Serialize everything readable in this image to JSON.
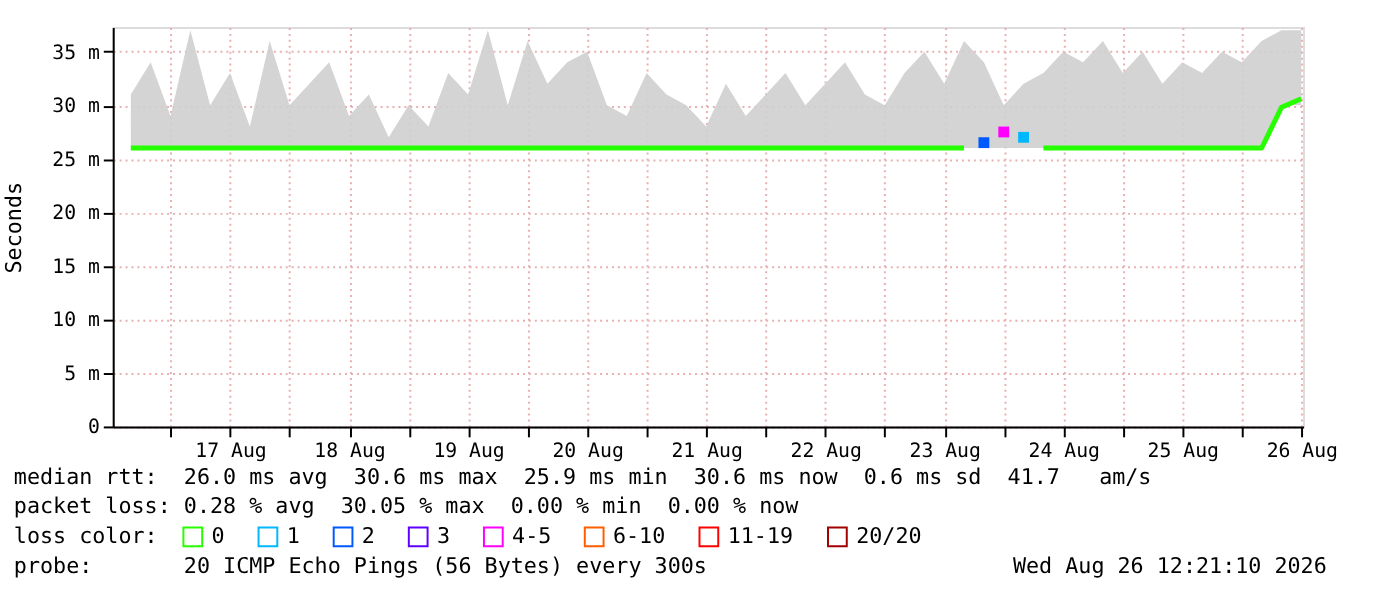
{
  "chart_data": {
    "type": "line",
    "ylabel": "Seconds",
    "legend_title": "loss color:",
    "legend": "bottom",
    "grid": true,
    "line_style": "solid",
    "marker": "none",
    "x": [
      "2026-08-16T16:00",
      "2026-08-16T20:00",
      "2026-08-17T00:00",
      "2026-08-17T04:00",
      "2026-08-17T08:00",
      "2026-08-17T12:00",
      "2026-08-17T16:00",
      "2026-08-17T20:00",
      "2026-08-18T00:00",
      "2026-08-18T04:00",
      "2026-08-18T08:00",
      "2026-08-18T12:00",
      "2026-08-18T16:00",
      "2026-08-18T20:00",
      "2026-08-19T00:00",
      "2026-08-19T04:00",
      "2026-08-19T08:00",
      "2026-08-19T12:00",
      "2026-08-19T16:00",
      "2026-08-19T20:00",
      "2026-08-20T00:00",
      "2026-08-20T04:00",
      "2026-08-20T08:00",
      "2026-08-20T12:00",
      "2026-08-20T16:00",
      "2026-08-20T20:00",
      "2026-08-21T00:00",
      "2026-08-21T04:00",
      "2026-08-21T08:00",
      "2026-08-21T12:00",
      "2026-08-21T16:00",
      "2026-08-21T20:00",
      "2026-08-22T00:00",
      "2026-08-22T04:00",
      "2026-08-22T08:00",
      "2026-08-22T12:00",
      "2026-08-22T16:00",
      "2026-08-22T20:00",
      "2026-08-23T00:00",
      "2026-08-23T04:00",
      "2026-08-23T08:00",
      "2026-08-23T12:00",
      "2026-08-23T16:00",
      "2026-08-23T20:00",
      "2026-08-24T00:00",
      "2026-08-24T04:00",
      "2026-08-24T08:00",
      "2026-08-24T12:00",
      "2026-08-24T16:00",
      "2026-08-24T20:00",
      "2026-08-25T00:00",
      "2026-08-25T04:00",
      "2026-08-25T08:00",
      "2026-08-25T12:00",
      "2026-08-25T16:00",
      "2026-08-25T20:00",
      "2026-08-26T00:00",
      "2026-08-26T04:00",
      "2026-08-26T08:00",
      "2026-08-26T12:00"
    ],
    "xlim": [
      "2026-08-16T12:21",
      "2026-08-26T12:21"
    ],
    "xticks": [
      {
        "value": "2026-08-17T00:00",
        "label": null
      },
      {
        "value": "2026-08-17T12:00",
        "label": "17 Aug"
      },
      {
        "value": "2026-08-18T00:00",
        "label": null
      },
      {
        "value": "2026-08-18T12:00",
        "label": "18 Aug"
      },
      {
        "value": "2026-08-19T00:00",
        "label": null
      },
      {
        "value": "2026-08-19T12:00",
        "label": "19 Aug"
      },
      {
        "value": "2026-08-20T00:00",
        "label": null
      },
      {
        "value": "2026-08-20T12:00",
        "label": "20 Aug"
      },
      {
        "value": "2026-08-21T00:00",
        "label": null
      },
      {
        "value": "2026-08-21T12:00",
        "label": "21 Aug"
      },
      {
        "value": "2026-08-22T00:00",
        "label": null
      },
      {
        "value": "2026-08-22T12:00",
        "label": "22 Aug"
      },
      {
        "value": "2026-08-23T00:00",
        "label": null
      },
      {
        "value": "2026-08-23T12:00",
        "label": "23 Aug"
      },
      {
        "value": "2026-08-24T00:00",
        "label": null
      },
      {
        "value": "2026-08-24T12:00",
        "label": "24 Aug"
      },
      {
        "value": "2026-08-25T00:00",
        "label": null
      },
      {
        "value": "2026-08-25T12:00",
        "label": "25 Aug"
      },
      {
        "value": "2026-08-26T00:00",
        "label": null
      },
      {
        "value": "2026-08-26T12:00",
        "label": "26 Aug"
      }
    ],
    "ylim": [
      0,
      37.3
    ],
    "yticks": [
      0,
      {
        "value": 5,
        "label": "5 m"
      },
      {
        "value": 10,
        "label": "10 m"
      },
      {
        "value": 15,
        "label": "15 m"
      },
      {
        "value": 20,
        "label": "20 m"
      },
      {
        "value": 25,
        "label": "25 m"
      },
      {
        "value": 30,
        "label": "30 m"
      },
      {
        "value": 35,
        "label": "35 m"
      }
    ],
    "series": [
      {
        "name": "0",
        "color": "#26ff00",
        "values": [
          26,
          26,
          26,
          26,
          26,
          26,
          26,
          26,
          26,
          26,
          26,
          26,
          26,
          26,
          26,
          26,
          26,
          26,
          26,
          26,
          26,
          26,
          26,
          26,
          26,
          26,
          26,
          26,
          26,
          26,
          26,
          26,
          26,
          26,
          26,
          26,
          26,
          26,
          26,
          26,
          26,
          26,
          26,
          null,
          null,
          null,
          26,
          26,
          26,
          26,
          26,
          26,
          26,
          26,
          26,
          26,
          26,
          26,
          29.8,
          30.6
        ],
        "lower": [
          26,
          26,
          26,
          26,
          26,
          26,
          26,
          26,
          26,
          26,
          26,
          26,
          26,
          26,
          26,
          26,
          26,
          26,
          26,
          26,
          26,
          26,
          26,
          26,
          26,
          26,
          26,
          26,
          26,
          26,
          26,
          26,
          26,
          26,
          26,
          26,
          26,
          26,
          26,
          26,
          26,
          26,
          26,
          26,
          26,
          26,
          26,
          26,
          26,
          26,
          26,
          26,
          26,
          26,
          26,
          26,
          26,
          26,
          30,
          30
        ],
        "upper": [
          31,
          34,
          29,
          37,
          30,
          33,
          28,
          36,
          30,
          32,
          34,
          29,
          31,
          27,
          30,
          28,
          33,
          31,
          37,
          30,
          36,
          32,
          34,
          35,
          30,
          29,
          33,
          31,
          30,
          28,
          32,
          29,
          31,
          33,
          30,
          32,
          34,
          31,
          30,
          33,
          35,
          32,
          36,
          34,
          30,
          32,
          33,
          35,
          34,
          36,
          33,
          35,
          32,
          34,
          33,
          35,
          34,
          36,
          37,
          37
        ]
      },
      {
        "name": "1",
        "color": "#00b8ff",
        "marker": "square",
        "values": [
          null,
          null,
          null,
          null,
          null,
          null,
          null,
          null,
          null,
          null,
          null,
          null,
          null,
          null,
          null,
          null,
          null,
          null,
          null,
          null,
          null,
          null,
          null,
          null,
          null,
          null,
          null,
          null,
          null,
          null,
          null,
          null,
          null,
          null,
          null,
          null,
          null,
          null,
          null,
          null,
          null,
          null,
          null,
          null,
          null,
          27,
          null,
          null,
          null,
          null,
          null,
          null,
          null,
          null,
          null,
          null,
          null,
          null,
          null,
          null
        ]
      },
      {
        "name": "2",
        "color": "#0059ff",
        "marker": "square",
        "values": [
          null,
          null,
          null,
          null,
          null,
          null,
          null,
          null,
          null,
          null,
          null,
          null,
          null,
          null,
          null,
          null,
          null,
          null,
          null,
          null,
          null,
          null,
          null,
          null,
          null,
          null,
          null,
          null,
          null,
          null,
          null,
          null,
          null,
          null,
          null,
          null,
          null,
          null,
          null,
          null,
          null,
          null,
          null,
          26.5,
          null,
          null,
          null,
          null,
          null,
          null,
          null,
          null,
          null,
          null,
          null,
          null,
          null,
          null,
          null,
          null
        ]
      },
      {
        "name": "3",
        "color": "#5e00ff",
        "values": [
          null,
          null,
          null,
          null,
          null,
          null,
          null,
          null,
          null,
          null,
          null,
          null,
          null,
          null,
          null,
          null,
          null,
          null,
          null,
          null,
          null,
          null,
          null,
          null,
          null,
          null,
          null,
          null,
          null,
          null,
          null,
          null,
          null,
          null,
          null,
          null,
          null,
          null,
          null,
          null,
          null,
          null,
          null,
          null,
          null,
          null,
          null,
          null,
          null,
          null,
          null,
          null,
          null,
          null,
          null,
          null,
          null,
          null,
          null,
          null
        ]
      },
      {
        "name": "4-5",
        "color": "#ff00ff",
        "marker": "square",
        "values": [
          null,
          null,
          null,
          null,
          null,
          null,
          null,
          null,
          null,
          null,
          null,
          null,
          null,
          null,
          null,
          null,
          null,
          null,
          null,
          null,
          null,
          null,
          null,
          null,
          null,
          null,
          null,
          null,
          null,
          null,
          null,
          null,
          null,
          null,
          null,
          null,
          null,
          null,
          null,
          null,
          null,
          null,
          null,
          null,
          27.5,
          null,
          null,
          null,
          null,
          null,
          null,
          null,
          null,
          null,
          null,
          null,
          null,
          null,
          null,
          null
        ]
      },
      {
        "name": "6-10",
        "color": "#ff5e00",
        "values": [
          null,
          null,
          null,
          null,
          null,
          null,
          null,
          null,
          null,
          null,
          null,
          null,
          null,
          null,
          null,
          null,
          null,
          null,
          null,
          null,
          null,
          null,
          null,
          null,
          null,
          null,
          null,
          null,
          null,
          null,
          null,
          null,
          null,
          null,
          null,
          null,
          null,
          null,
          null,
          null,
          null,
          null,
          null,
          null,
          null,
          null,
          null,
          null,
          null,
          null,
          null,
          null,
          null,
          null,
          null,
          null,
          null,
          null,
          null,
          null
        ]
      },
      {
        "name": "11-19",
        "color": "#ff0000",
        "values": [
          null,
          null,
          null,
          null,
          null,
          null,
          null,
          null,
          null,
          null,
          null,
          null,
          null,
          null,
          null,
          null,
          null,
          null,
          null,
          null,
          null,
          null,
          null,
          null,
          null,
          null,
          null,
          null,
          null,
          null,
          null,
          null,
          null,
          null,
          null,
          null,
          null,
          null,
          null,
          null,
          null,
          null,
          null,
          null,
          null,
          null,
          null,
          null,
          null,
          null,
          null,
          null,
          null,
          null,
          null,
          null,
          null,
          null,
          null,
          null
        ]
      },
      {
        "name": "20/20",
        "color": "#a10000",
        "values": [
          null,
          null,
          null,
          null,
          null,
          null,
          null,
          null,
          null,
          null,
          null,
          null,
          null,
          null,
          null,
          null,
          null,
          null,
          null,
          null,
          null,
          null,
          null,
          null,
          null,
          null,
          null,
          null,
          null,
          null,
          null,
          null,
          null,
          null,
          null,
          null,
          null,
          null,
          null,
          null,
          null,
          null,
          null,
          null,
          null,
          null,
          null,
          null,
          null,
          null,
          null,
          null,
          null,
          null,
          null,
          null,
          null,
          null,
          null,
          null
        ]
      }
    ],
    "annotations": [
      "median rtt:  26.0 ms avg  30.6 ms max  25.9 ms min  30.6 ms now  0.6 ms sd  41.7   am/s",
      "packet loss: 0.28 % avg  30.05 % max  0.00 % min  0.00 % now",
      "probe:       20 ICMP Echo Pings (56 Bytes) every 300s",
      "Wed Aug 26 12:21:10 2026"
    ]
  }
}
